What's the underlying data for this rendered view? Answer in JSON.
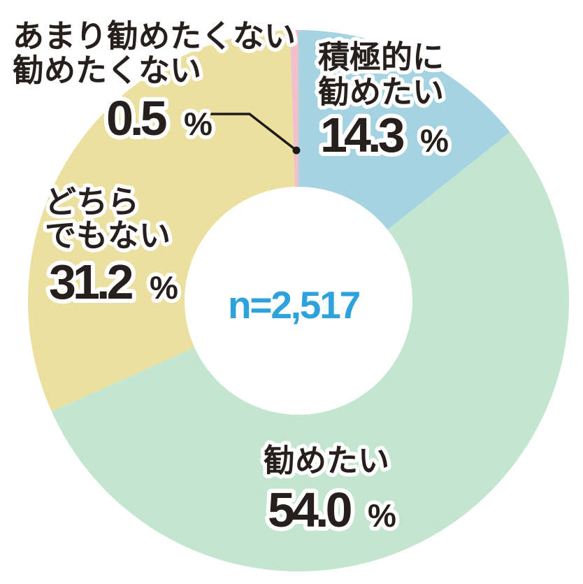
{
  "chart_data": {
    "type": "pie",
    "subtype": "donut",
    "title": "",
    "center_label": "n=2,517",
    "sample_size": "2,517",
    "start_angle": "top",
    "direction": "clockwise",
    "legend_position": "labels-around-slices",
    "segments": [
      {
        "label": "積極的に勧めたい",
        "label_lines": [
          "積極的に",
          "勧めたい"
        ],
        "value": 14.3,
        "value_text": "14.3",
        "unit": "%",
        "color": "#A5D3E2"
      },
      {
        "label": "勧めたい",
        "label_lines": [
          "勧めたい"
        ],
        "value": 54.0,
        "value_text": "54.0",
        "unit": "%",
        "color": "#C4E6D0"
      },
      {
        "label": "どちらでもない",
        "label_lines": [
          "どちら",
          "でもない"
        ],
        "value": 31.2,
        "value_text": "31.2",
        "unit": "%",
        "color": "#EBE09F"
      },
      {
        "label": "あまり勧めたくない・勧めたくない",
        "label_lines": [
          "あまり勧めたくない",
          "勧めたくない"
        ],
        "value": 0.5,
        "value_text": "0.5",
        "unit": "%",
        "color": "#F1C0CB"
      }
    ],
    "colors": {
      "center_text": "#2EA3DB",
      "label_text": "#261F1D",
      "label_outline": "#FFFFFF",
      "leader_line": "#1E1A18",
      "background": "#FFFFFF"
    }
  }
}
